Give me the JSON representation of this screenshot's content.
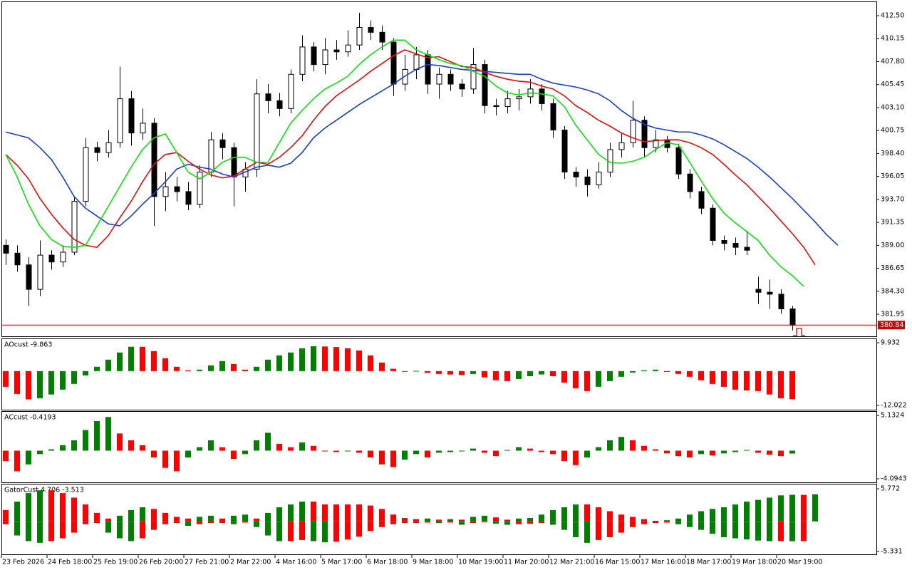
{
  "chart_data": [
    {
      "type": "candlestick",
      "categories": [
        "23 Feb 2026",
        null,
        null,
        null,
        "24 Feb 18:00",
        null,
        null,
        null,
        "25 Feb 19:00",
        null,
        null,
        null,
        "26 Feb 20:00",
        null,
        null,
        null,
        "27 Feb 21:00",
        null,
        null,
        null,
        "2 Mar 22:00",
        null,
        null,
        null,
        "4 Mar 16:00",
        null,
        null,
        null,
        "5 Mar 17:00",
        null,
        null,
        null,
        "6 Mar 18:00",
        null,
        null,
        null,
        "9 Mar 18:00",
        null,
        null,
        null,
        "10 Mar 19:00",
        null,
        null,
        null,
        "11 Mar 20:00",
        null,
        null,
        null,
        "12 Mar 21:00",
        null,
        null,
        null,
        "16 Mar 15:00",
        null,
        null,
        null,
        "17 Mar 16:00",
        null,
        null,
        null,
        "18 Mar 17:00",
        null,
        null,
        null,
        "19 Mar 18:00",
        null,
        null,
        null,
        "20 Mar 19:00",
        null,
        null,
        null,
        null,
        null
      ],
      "open": [
        389.0,
        388.2,
        387.0,
        384.5,
        388.0,
        387.3,
        388.3,
        393.5,
        399.0,
        398.5,
        399.5,
        404.0,
        400.5,
        401.5,
        394.0,
        395.0,
        394.5,
        393.2,
        396.5,
        399.8,
        399.0,
        396.0,
        396.8,
        404.5,
        403.8,
        403.0,
        406.5,
        409.3,
        407.5,
        409.0,
        408.8,
        409.5,
        411.3,
        410.8,
        409.8,
        405.5,
        407.0,
        408.5,
        405.5,
        406.5,
        405.5,
        405.0,
        407.5,
        403.3,
        403.2,
        404.0,
        404.2,
        405.0,
        403.5,
        400.8,
        396.5,
        396.0,
        395.2,
        396.5,
        398.8,
        399.5,
        401.8,
        399.0,
        399.8,
        399.0,
        396.3,
        394.5,
        392.8,
        389.5,
        389.2,
        388.8,
        384.5,
        384.2,
        384.0,
        382.5,
        null,
        null,
        null,
        null
      ],
      "high": [
        389.6,
        389.0,
        387.8,
        389.5,
        388.5,
        389.0,
        394.0,
        400.0,
        399.6,
        400.8,
        407.3,
        404.8,
        403.0,
        402.0,
        396.5,
        396.0,
        395.5,
        397.2,
        400.6,
        400.5,
        399.5,
        397.5,
        406.0,
        405.5,
        404.6,
        407.0,
        410.5,
        409.8,
        410.2,
        410.0,
        411.0,
        412.8,
        412.0,
        411.5,
        410.2,
        408.5,
        409.3,
        409.0,
        407.2,
        407.0,
        406.0,
        409.2,
        408.0,
        404.0,
        404.8,
        405.0,
        406.0,
        405.5,
        404.0,
        401.2,
        397.0,
        396.8,
        397.5,
        399.5,
        400.5,
        403.8,
        402.2,
        400.8,
        400.2,
        399.4,
        396.8,
        395.0,
        393.2,
        390.0,
        389.8,
        390.5,
        385.8,
        385.5,
        384.5,
        382.8,
        null,
        null,
        null,
        null
      ],
      "low": [
        387.0,
        386.3,
        382.8,
        383.8,
        386.5,
        386.8,
        388.0,
        393.0,
        397.6,
        398.0,
        399.0,
        399.2,
        399.8,
        391.0,
        392.5,
        393.5,
        392.6,
        392.8,
        396.0,
        397.8,
        393.0,
        394.5,
        396.0,
        402.5,
        402.2,
        402.5,
        405.8,
        406.8,
        406.5,
        408.0,
        408.3,
        409.0,
        410.0,
        409.0,
        404.3,
        404.8,
        406.0,
        404.5,
        404.0,
        404.8,
        404.2,
        404.5,
        402.5,
        402.3,
        402.5,
        402.8,
        403.5,
        402.8,
        400.0,
        395.8,
        395.0,
        394.0,
        394.8,
        396.0,
        398.0,
        399.0,
        398.0,
        398.5,
        398.5,
        395.8,
        393.8,
        392.2,
        389.0,
        388.5,
        388.0,
        388.0,
        383.0,
        382.5,
        382.0,
        380.3,
        null,
        null,
        null,
        null
      ],
      "close": [
        388.2,
        387.0,
        384.5,
        388.0,
        387.3,
        388.3,
        393.5,
        399.0,
        398.5,
        399.5,
        404.0,
        400.5,
        401.5,
        394.0,
        395.0,
        394.5,
        393.2,
        396.5,
        399.8,
        399.0,
        396.0,
        396.8,
        404.5,
        403.8,
        403.0,
        406.5,
        409.3,
        407.5,
        409.0,
        408.8,
        409.5,
        411.3,
        410.8,
        409.8,
        405.5,
        407.0,
        408.5,
        405.5,
        406.5,
        405.5,
        405.0,
        407.5,
        403.3,
        403.2,
        404.0,
        404.2,
        405.0,
        403.5,
        400.8,
        396.5,
        396.0,
        395.2,
        396.5,
        398.8,
        399.5,
        401.8,
        399.0,
        399.8,
        399.0,
        396.3,
        394.5,
        392.8,
        389.5,
        389.2,
        388.8,
        388.5,
        384.2,
        384.0,
        382.5,
        380.84,
        null,
        null,
        null,
        null
      ],
      "up_color": "#ffffff",
      "down_color": "#000000",
      "series": [
        {
          "color": "#1a3fc8",
          "values": [
            400.6,
            400.3,
            400.0,
            399.0,
            397.8,
            396.0,
            394.0,
            392.8,
            392.0,
            391.2,
            391.0,
            392.0,
            393.2,
            394.3,
            395.5,
            396.8,
            397.3,
            397.0,
            396.8,
            396.3,
            396.0,
            396.5,
            397.0,
            397.2,
            397.0,
            397.4,
            398.5,
            400.0,
            401.0,
            401.8,
            402.6,
            403.4,
            404.1,
            404.8,
            405.5,
            406.3,
            407.0,
            407.5,
            407.4,
            407.2,
            407.0,
            406.9,
            406.8,
            406.7,
            406.6,
            406.5,
            406.5,
            406.0,
            405.6,
            405.4,
            405.2,
            404.9,
            404.5,
            403.8,
            402.8,
            402.0,
            401.4,
            401.0,
            400.8,
            400.6,
            400.6,
            400.3,
            399.9,
            399.3,
            398.6,
            397.9,
            397.0,
            396.0,
            394.9,
            393.8,
            392.6,
            391.4,
            390.1,
            389.0
          ]
        },
        {
          "color": "#e01010",
          "values": [
            398.3,
            397.2,
            395.8,
            393.8,
            392.2,
            390.8,
            389.6,
            389.0,
            388.8,
            390.0,
            391.8,
            393.5,
            395.5,
            397.3,
            398.3,
            398.5,
            397.6,
            396.8,
            396.2,
            395.9,
            396.1,
            396.8,
            397.5,
            397.3,
            398.0,
            399.0,
            400.2,
            401.8,
            403.2,
            404.3,
            405.1,
            405.9,
            406.8,
            407.6,
            408.4,
            409.0,
            408.6,
            408.2,
            408.3,
            407.8,
            407.3,
            407.2,
            406.7,
            406.3,
            406.0,
            405.8,
            405.7,
            405.3,
            405.0,
            404.3,
            403.3,
            402.6,
            401.8,
            401.2,
            400.5,
            400.0,
            399.6,
            399.7,
            399.8,
            399.8,
            399.5,
            399.0,
            398.3,
            397.3,
            396.2,
            395.2,
            394.0,
            392.8,
            391.5,
            390.2,
            388.8,
            387.0,
            null,
            null
          ]
        },
        {
          "color": "#10e010",
          "values": [
            398.3,
            396.0,
            393.2,
            391.0,
            389.6,
            388.9,
            388.8,
            389.0,
            391.0,
            393.0,
            395.0,
            397.0,
            398.8,
            400.0,
            400.4,
            398.5,
            396.5,
            395.8,
            396.5,
            397.5,
            398.0,
            398.0,
            397.5,
            397.5,
            399.5,
            401.5,
            402.8,
            404.0,
            405.0,
            405.6,
            406.3,
            407.5,
            408.5,
            409.3,
            410.0,
            410.0,
            409.0,
            408.5,
            408.0,
            407.6,
            407.4,
            406.8,
            406.3,
            405.3,
            404.6,
            404.4,
            404.6,
            404.5,
            404.3,
            403.2,
            401.3,
            399.8,
            398.3,
            397.5,
            397.4,
            397.6,
            398.0,
            398.8,
            399.5,
            399.3,
            397.5,
            395.6,
            393.8,
            392.3,
            391.3,
            390.4,
            389.5,
            388.0,
            386.8,
            385.9,
            384.8,
            null,
            null,
            null
          ]
        }
      ],
      "current_price": 380.84,
      "current_price_color": "#c80000",
      "ylim": [
        379.84,
        413.74
      ],
      "yticks": [
        {
          "value": 412.5,
          "label": "412.50"
        },
        410.15,
        {
          "value": 407.8,
          "label": "407.80"
        },
        405.45,
        {
          "value": 403.1,
          "label": "403.10"
        },
        400.75,
        {
          "value": 398.4,
          "label": "398.40"
        },
        396.05,
        {
          "value": 393.7,
          "label": "393.70"
        },
        391.35,
        {
          "value": 389.0,
          "label": "389.00"
        },
        386.65,
        {
          "value": 384.3,
          "label": "384.30"
        },
        381.95
      ]
    },
    {
      "type": "oscillator",
      "title": "AOcust -9.863",
      "values": [
        -5.5,
        -8.0,
        -9.9,
        -9.5,
        -8.2,
        -6.5,
        -4.5,
        -1.5,
        1.5,
        4.0,
        6.5,
        8.5,
        8.5,
        7.0,
        4.5,
        1.5,
        0.3,
        0.5,
        2.0,
        3.5,
        2.5,
        0.5,
        1.5,
        4.0,
        5.5,
        6.5,
        8.0,
        8.7,
        8.6,
        8.4,
        8.0,
        7.2,
        5.5,
        3.0,
        0.8,
        -0.2,
        0.1,
        -0.6,
        -1.0,
        -1.2,
        -1.4,
        -1.0,
        -2.2,
        -3.2,
        -3.5,
        -2.8,
        -1.8,
        -1.2,
        -1.8,
        -4.0,
        -6.0,
        -7.0,
        -5.5,
        -3.5,
        -2.0,
        -0.5,
        0.3,
        0.5,
        -0.3,
        -1.0,
        -2.0,
        -3.2,
        -4.5,
        -5.5,
        -6.5,
        -6.8,
        -7.0,
        -8.2,
        -9.5,
        -9.863,
        null,
        null,
        null,
        null
      ],
      "up_color": "#008000",
      "down_color": "#ff0000",
      "ylim": [
        -12.022,
        9.932
      ],
      "yticks": [
        -12.022,
        9.932
      ]
    },
    {
      "type": "oscillator",
      "title": "ACcust -0.4193",
      "values": [
        -1.5,
        -3.0,
        -2.0,
        -0.5,
        0.2,
        0.8,
        1.5,
        3.0,
        4.3,
        4.9,
        2.5,
        1.5,
        0.8,
        -1.0,
        -2.5,
        -3.0,
        -1.0,
        0.5,
        1.5,
        0.5,
        -1.2,
        -0.5,
        1.5,
        2.6,
        1.0,
        0.5,
        1.2,
        0.7,
        -0.1,
        -0.2,
        -0.1,
        -0.3,
        -1.0,
        -2.0,
        -2.4,
        -1.3,
        -0.5,
        -1.0,
        -0.3,
        -0.2,
        -0.1,
        0.3,
        -0.3,
        -0.8,
        0.1,
        0.5,
        0.3,
        -0.2,
        -0.5,
        -1.5,
        -2.1,
        -1.0,
        0.5,
        1.5,
        2.0,
        1.5,
        0.7,
        0.2,
        -0.4,
        -0.8,
        -1.0,
        -0.5,
        -0.7,
        -0.4,
        -0.2,
        0.1,
        -0.3,
        -0.6,
        -0.8,
        -0.4193,
        null,
        null,
        null,
        null
      ],
      "up_color": "#008000",
      "down_color": "#ff0000",
      "ylim": [
        -4.0943,
        5.1324
      ],
      "yticks": [
        -4.0943,
        5.1324
      ]
    },
    {
      "type": "gator",
      "title": "GatorCust 4.706 -3.513",
      "series": [
        {
          "values": [
            2.0,
            3.5,
            5.0,
            5.5,
            5.5,
            5.0,
            4.2,
            3.0,
            1.5,
            0.5,
            1.0,
            2.0,
            2.5,
            2.2,
            1.5,
            0.8,
            0.5,
            0.8,
            1.0,
            0.5,
            1.0,
            1.2,
            0.5,
            1.5,
            2.5,
            3.0,
            3.5,
            3.5,
            3.0,
            3.0,
            3.0,
            3.0,
            2.8,
            2.2,
            1.2,
            0.6,
            0.4,
            0.5,
            0.3,
            0.4,
            0.3,
            0.8,
            1.0,
            0.7,
            0.3,
            0.5,
            0.6,
            1.2,
            2.0,
            2.5,
            3.0,
            3.0,
            2.5,
            1.8,
            1.2,
            0.8,
            0.4,
            0.1,
            0.2,
            0.5,
            1.2,
            1.8,
            2.2,
            2.5,
            3.0,
            3.5,
            3.8,
            4.2,
            4.6,
            4.706,
            4.7,
            4.8,
            null,
            null
          ]
        },
        {
          "values": [
            -0.5,
            -2.5,
            -3.5,
            -3.8,
            -3.5,
            -3.0,
            -2.0,
            -0.5,
            -0.3,
            -2.0,
            -3.0,
            -3.5,
            -3.0,
            -1.5,
            -0.5,
            -0.3,
            -0.8,
            -0.5,
            -0.3,
            -0.3,
            -0.5,
            -0.2,
            -1.0,
            -2.5,
            -3.5,
            -3.5,
            -3.3,
            -3.5,
            -3.7,
            -3.6,
            -3.2,
            -2.7,
            -1.7,
            -1.0,
            -0.5,
            -0.3,
            -0.3,
            -0.2,
            -0.3,
            -0.2,
            -0.6,
            -0.3,
            -0.1,
            -0.4,
            -0.6,
            -0.5,
            -0.4,
            -0.3,
            -0.6,
            -1.5,
            -2.8,
            -3.8,
            -3.3,
            -2.8,
            -2.0,
            -1.0,
            -0.5,
            -0.3,
            -0.2,
            -0.5,
            -1.0,
            -1.5,
            -2.2,
            -2.8,
            -3.0,
            -3.2,
            -3.4,
            -3.5,
            -3.5,
            -3.513,
            -3.5,
            null,
            null,
            null
          ]
        }
      ],
      "up_color": "#008000",
      "down_color": "#ff0000",
      "ylim": [
        -5.331,
        5.772
      ],
      "yticks": [
        -5.331,
        5.772
      ]
    }
  ]
}
